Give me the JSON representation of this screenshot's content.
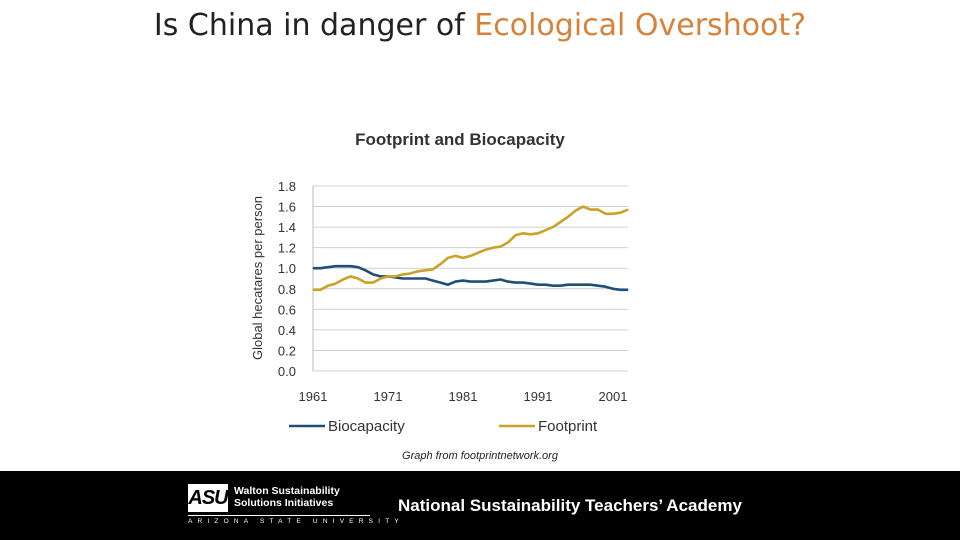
{
  "slide": {
    "title_prefix": "Is China in danger of ",
    "title_accent": "Ecological Overshoot?",
    "caption": "Graph from footprintnetwork.org",
    "accent_color": "#d6823a"
  },
  "footer": {
    "logo_mark": "ASU",
    "logo_unit_line1": "Walton Sustainability",
    "logo_unit_line2": "Solutions Initiatives",
    "logo_university": "ARIZONA STATE UNIVERSITY",
    "academy": "National Sustainability Teachers’ Academy"
  },
  "chart_data": {
    "type": "line",
    "title": "Footprint and Biocapacity",
    "ylabel": "Global hecatares per person",
    "xlabel": "",
    "xlim": [
      1961,
      2003
    ],
    "ylim": [
      0,
      1.8
    ],
    "x_ticks": [
      "1961",
      "1971",
      "1981",
      "1991",
      "2001"
    ],
    "y_ticks": [
      "1.8",
      "1.6",
      "1.4",
      "1.2",
      "1.0",
      "0.8",
      "0.6",
      "0.4",
      "0.2",
      "0.0"
    ],
    "grid": true,
    "legend_position": "bottom",
    "series": [
      {
        "name": "Biocapacity",
        "color": "#1f4e79",
        "points": [
          [
            1961,
            1.0
          ],
          [
            1962,
            1.0
          ],
          [
            1963,
            1.01
          ],
          [
            1964,
            1.02
          ],
          [
            1965,
            1.02
          ],
          [
            1966,
            1.02
          ],
          [
            1967,
            1.01
          ],
          [
            1968,
            0.98
          ],
          [
            1969,
            0.94
          ],
          [
            1970,
            0.92
          ],
          [
            1971,
            0.92
          ],
          [
            1972,
            0.91
          ],
          [
            1973,
            0.9
          ],
          [
            1974,
            0.9
          ],
          [
            1975,
            0.9
          ],
          [
            1976,
            0.9
          ],
          [
            1977,
            0.88
          ],
          [
            1978,
            0.86
          ],
          [
            1979,
            0.84
          ],
          [
            1980,
            0.87
          ],
          [
            1981,
            0.88
          ],
          [
            1982,
            0.87
          ],
          [
            1983,
            0.87
          ],
          [
            1984,
            0.87
          ],
          [
            1985,
            0.88
          ],
          [
            1986,
            0.89
          ],
          [
            1987,
            0.87
          ],
          [
            1988,
            0.86
          ],
          [
            1989,
            0.86
          ],
          [
            1990,
            0.85
          ],
          [
            1991,
            0.84
          ],
          [
            1992,
            0.84
          ],
          [
            1993,
            0.83
          ],
          [
            1994,
            0.83
          ],
          [
            1995,
            0.84
          ],
          [
            1996,
            0.84
          ],
          [
            1997,
            0.84
          ],
          [
            1998,
            0.84
          ],
          [
            1999,
            0.83
          ],
          [
            2000,
            0.82
          ],
          [
            2001,
            0.8
          ],
          [
            2002,
            0.79
          ],
          [
            2003,
            0.79
          ]
        ]
      },
      {
        "name": "Footprint",
        "color": "#c9a227",
        "points": [
          [
            1961,
            0.79
          ],
          [
            1962,
            0.79
          ],
          [
            1963,
            0.83
          ],
          [
            1964,
            0.85
          ],
          [
            1965,
            0.89
          ],
          [
            1966,
            0.92
          ],
          [
            1967,
            0.9
          ],
          [
            1968,
            0.86
          ],
          [
            1969,
            0.86
          ],
          [
            1970,
            0.9
          ],
          [
            1971,
            0.92
          ],
          [
            1972,
            0.92
          ],
          [
            1973,
            0.94
          ],
          [
            1974,
            0.95
          ],
          [
            1975,
            0.97
          ],
          [
            1976,
            0.98
          ],
          [
            1977,
            0.99
          ],
          [
            1978,
            1.04
          ],
          [
            1979,
            1.1
          ],
          [
            1980,
            1.12
          ],
          [
            1981,
            1.1
          ],
          [
            1982,
            1.12
          ],
          [
            1983,
            1.15
          ],
          [
            1984,
            1.18
          ],
          [
            1985,
            1.2
          ],
          [
            1986,
            1.21
          ],
          [
            1987,
            1.25
          ],
          [
            1988,
            1.32
          ],
          [
            1989,
            1.34
          ],
          [
            1990,
            1.33
          ],
          [
            1991,
            1.34
          ],
          [
            1992,
            1.37
          ],
          [
            1993,
            1.4
          ],
          [
            1994,
            1.45
          ],
          [
            1995,
            1.5
          ],
          [
            1996,
            1.56
          ],
          [
            1997,
            1.6
          ],
          [
            1998,
            1.57
          ],
          [
            1999,
            1.57
          ],
          [
            2000,
            1.53
          ],
          [
            2001,
            1.53
          ],
          [
            2002,
            1.54
          ],
          [
            2003,
            1.57
          ]
        ]
      }
    ]
  }
}
